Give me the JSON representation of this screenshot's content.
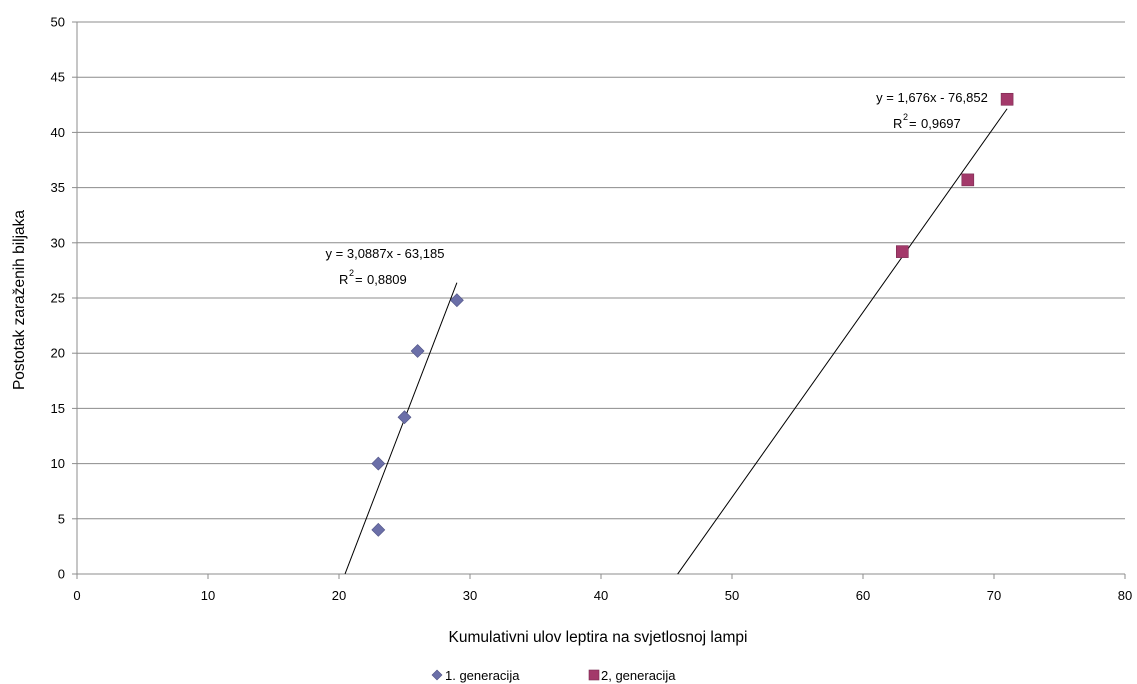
{
  "chart_data": {
    "type": "scatter",
    "xlabel": "Kumulativni ulov leptira na svjetlosnoj lampi",
    "ylabel": "Postotak zaraženih biljaka",
    "xlim": [
      0,
      80
    ],
    "ylim": [
      0,
      50
    ],
    "x_ticks": [
      0,
      10,
      20,
      30,
      40,
      50,
      60,
      70,
      80
    ],
    "y_ticks": [
      0,
      5,
      10,
      15,
      20,
      25,
      30,
      35,
      40,
      45,
      50
    ],
    "grid": "horizontal",
    "legend_position": "bottom",
    "series": [
      {
        "name": "1. generacija",
        "marker": "diamond",
        "color": "#6b6fa8",
        "x": [
          23,
          23,
          25,
          26,
          29
        ],
        "y": [
          4,
          10,
          14.2,
          20.2,
          24.8
        ],
        "trendline": {
          "slope": 3.0887,
          "intercept": -63.185,
          "x_range": [
            20.46,
            29
          ]
        },
        "equation": "y = 3,0887x - 63,185",
        "r2": "0,8809"
      },
      {
        "name": "2, generacija",
        "marker": "square",
        "color": "#a3396a",
        "x": [
          63,
          68,
          71
        ],
        "y": [
          29.2,
          35.7,
          43
        ],
        "trendline": {
          "slope": 1.676,
          "intercept": -76.852,
          "x_range": [
            45.85,
            71
          ]
        },
        "equation": "y = 1,676x - 76,852",
        "r2": "0,9697"
      }
    ]
  }
}
